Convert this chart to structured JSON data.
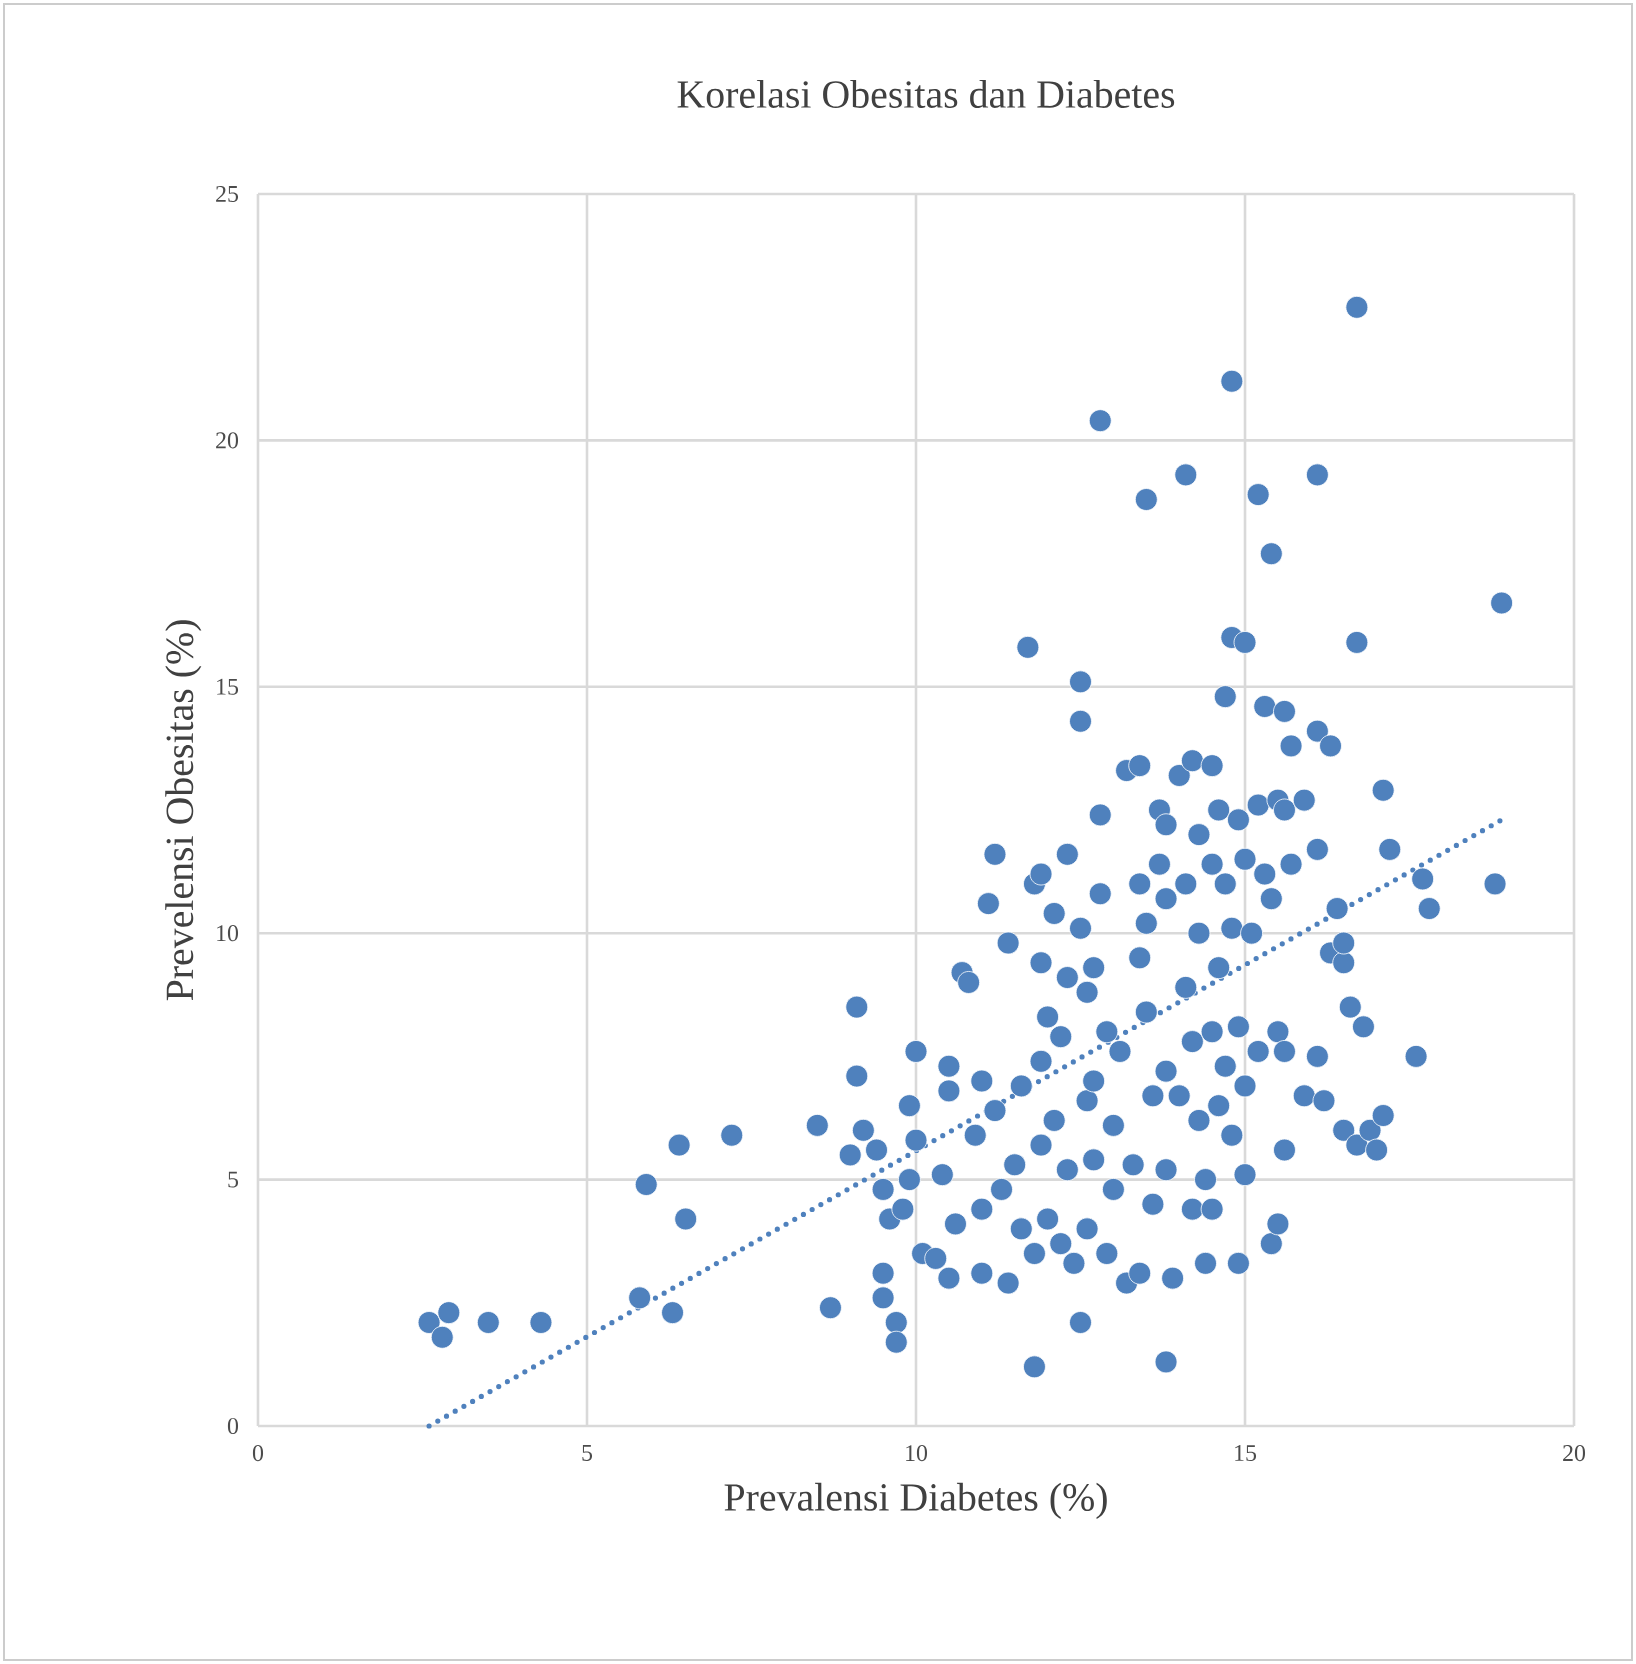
{
  "chart_data": {
    "type": "scatter",
    "title": "Korelasi Obesitas dan Diabetes",
    "xlabel": "Prevalensi Diabetes (%)",
    "ylabel": "Prevelensi Obesitas (%)",
    "xlim": [
      0,
      20
    ],
    "ylim": [
      0,
      25
    ],
    "xticks": [
      0,
      5,
      10,
      15,
      20
    ],
    "yticks": [
      0,
      5,
      10,
      15,
      20,
      25
    ],
    "grid": true,
    "series": [
      {
        "color": "#4f81bd",
        "marker": "circle",
        "x": [
          2.6,
          2.9,
          2.8,
          3.5,
          4.3,
          5.8,
          5.9,
          6.3,
          6.4,
          6.5,
          7.2,
          8.5,
          8.7,
          9.1,
          9.1,
          9.0,
          9.2,
          9.4,
          9.5,
          9.5,
          9.6,
          9.5,
          9.7,
          9.7,
          9.8,
          9.9,
          9.9,
          10.0,
          10.0,
          10.1,
          10.3,
          10.4,
          10.5,
          10.5,
          10.5,
          10.6,
          10.7,
          10.8,
          10.9,
          11.0,
          11.0,
          11.0,
          11.1,
          11.2,
          11.2,
          11.3,
          11.4,
          11.4,
          11.5,
          11.6,
          11.6,
          11.7,
          11.8,
          11.8,
          11.8,
          11.9,
          11.9,
          11.9,
          11.9,
          12.0,
          12.0,
          12.1,
          12.1,
          12.2,
          12.2,
          12.3,
          12.3,
          12.3,
          12.4,
          12.5,
          12.5,
          12.5,
          12.5,
          12.6,
          12.6,
          12.6,
          12.7,
          12.7,
          12.7,
          12.8,
          12.8,
          12.8,
          12.9,
          12.9,
          13.0,
          13.0,
          13.1,
          13.2,
          13.2,
          13.3,
          13.4,
          13.4,
          13.4,
          13.4,
          13.5,
          13.5,
          13.5,
          13.6,
          13.6,
          13.7,
          13.7,
          13.8,
          13.8,
          13.8,
          13.8,
          13.8,
          13.9,
          14.0,
          14.0,
          14.1,
          14.1,
          14.1,
          14.2,
          14.2,
          14.2,
          14.3,
          14.3,
          14.3,
          14.4,
          14.4,
          14.5,
          14.5,
          14.5,
          14.5,
          14.6,
          14.6,
          14.6,
          14.7,
          14.7,
          14.7,
          14.8,
          14.8,
          14.8,
          14.8,
          14.9,
          14.9,
          14.9,
          15.0,
          15.0,
          15.0,
          15.0,
          15.1,
          15.2,
          15.2,
          15.2,
          15.3,
          15.3,
          15.4,
          15.4,
          15.4,
          15.5,
          15.5,
          15.5,
          15.6,
          15.6,
          15.6,
          15.6,
          15.7,
          15.7,
          15.9,
          15.9,
          16.1,
          16.1,
          16.1,
          16.1,
          16.2,
          16.3,
          16.3,
          16.4,
          16.5,
          16.5,
          16.5,
          16.6,
          16.7,
          16.7,
          16.7,
          16.8,
          16.9,
          17.0,
          17.1,
          17.1,
          17.2,
          17.6,
          17.7,
          17.8,
          18.8,
          18.9
        ],
        "values": [
          2.1,
          2.3,
          1.8,
          2.1,
          2.1,
          2.6,
          4.9,
          2.3,
          5.7,
          4.2,
          5.9,
          6.1,
          2.4,
          8.5,
          7.1,
          5.5,
          6.0,
          5.6,
          3.1,
          2.6,
          4.2,
          4.8,
          2.1,
          1.7,
          4.4,
          5.0,
          6.5,
          7.6,
          5.8,
          3.5,
          3.4,
          5.1,
          3.0,
          6.8,
          7.3,
          4.1,
          9.2,
          9.0,
          5.9,
          7.0,
          4.4,
          3.1,
          10.6,
          11.6,
          6.4,
          4.8,
          2.9,
          9.8,
          5.3,
          6.9,
          4.0,
          15.8,
          1.2,
          3.5,
          11.0,
          11.2,
          9.4,
          7.4,
          5.7,
          8.3,
          4.2,
          6.2,
          10.4,
          7.9,
          3.7,
          11.6,
          9.1,
          5.2,
          3.3,
          15.1,
          14.3,
          10.1,
          2.1,
          8.8,
          6.6,
          4.0,
          9.3,
          7.0,
          5.4,
          20.4,
          12.4,
          10.8,
          8.0,
          3.5,
          6.1,
          4.8,
          7.6,
          2.9,
          13.3,
          5.3,
          13.4,
          11.0,
          9.5,
          3.1,
          18.8,
          10.2,
          8.4,
          6.7,
          4.5,
          11.4,
          12.5,
          12.2,
          10.7,
          7.2,
          5.2,
          1.3,
          3.0,
          13.2,
          6.7,
          19.3,
          11.0,
          8.9,
          13.5,
          7.8,
          4.4,
          12.0,
          10.0,
          6.2,
          3.3,
          5.0,
          13.4,
          11.4,
          8.0,
          4.4,
          12.5,
          9.3,
          6.5,
          14.8,
          11.0,
          7.3,
          21.2,
          16.0,
          10.1,
          5.9,
          12.3,
          8.1,
          3.3,
          15.9,
          11.5,
          6.9,
          5.1,
          10.0,
          18.9,
          12.6,
          7.6,
          14.6,
          11.2,
          3.7,
          17.7,
          10.7,
          12.7,
          8.0,
          4.1,
          14.5,
          12.5,
          7.6,
          5.6,
          13.8,
          11.4,
          12.7,
          6.7,
          19.3,
          14.1,
          11.7,
          7.5,
          6.6,
          13.8,
          9.6,
          10.5,
          9.4,
          9.8,
          6.0,
          8.5,
          22.7,
          15.9,
          5.7,
          8.1,
          6.0,
          5.6,
          12.9,
          6.3,
          11.7,
          7.5,
          11.1,
          10.5,
          11.0,
          16.7
        ]
      },
      {
        "type": "line",
        "color": "#4f81bd",
        "line_style": "dotted",
        "x": [
          2.6,
          18.9
        ],
        "values": [
          0,
          12.3
        ]
      }
    ]
  }
}
